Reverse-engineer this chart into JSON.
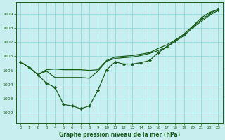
{
  "title": "Graphe pression niveau de la mer (hPa)",
  "bg_color": "#c8eef0",
  "grid_color": "#99dddd",
  "line_color": "#1a5c1a",
  "xlim": [
    -0.5,
    23.5
  ],
  "ylim": [
    1001.3,
    1009.8
  ],
  "yticks": [
    1002,
    1003,
    1004,
    1005,
    1006,
    1007,
    1008,
    1009
  ],
  "xticks": [
    0,
    1,
    2,
    3,
    4,
    5,
    6,
    7,
    8,
    9,
    10,
    11,
    12,
    13,
    14,
    15,
    16,
    17,
    18,
    19,
    20,
    21,
    22,
    23
  ],
  "line_jagged": [
    1005.6,
    1005.2,
    1004.7,
    1004.1,
    1003.8,
    1002.6,
    1002.5,
    1002.3,
    1002.5,
    1003.6,
    1005.05,
    1005.6,
    1005.45,
    1005.45,
    1005.55,
    1005.7,
    1006.25,
    1006.65,
    1007.1,
    1007.55,
    1008.1,
    1008.7,
    1009.1,
    1009.3
  ],
  "line_smooth1": [
    1005.6,
    1005.2,
    1004.7,
    1005.05,
    1005.1,
    1005.05,
    1005.05,
    1005.05,
    1005.0,
    1005.05,
    1005.7,
    1005.95,
    1006.0,
    1006.05,
    1006.15,
    1006.25,
    1006.55,
    1006.8,
    1007.15,
    1007.55,
    1008.1,
    1008.55,
    1009.0,
    1009.35
  ],
  "line_smooth2": [
    1005.6,
    1005.2,
    1004.7,
    1004.95,
    1004.5,
    1004.5,
    1004.5,
    1004.5,
    1004.45,
    1004.95,
    1005.65,
    1005.85,
    1005.9,
    1005.95,
    1006.05,
    1006.2,
    1006.4,
    1006.65,
    1007.05,
    1007.45,
    1008.0,
    1008.45,
    1008.9,
    1009.25
  ]
}
